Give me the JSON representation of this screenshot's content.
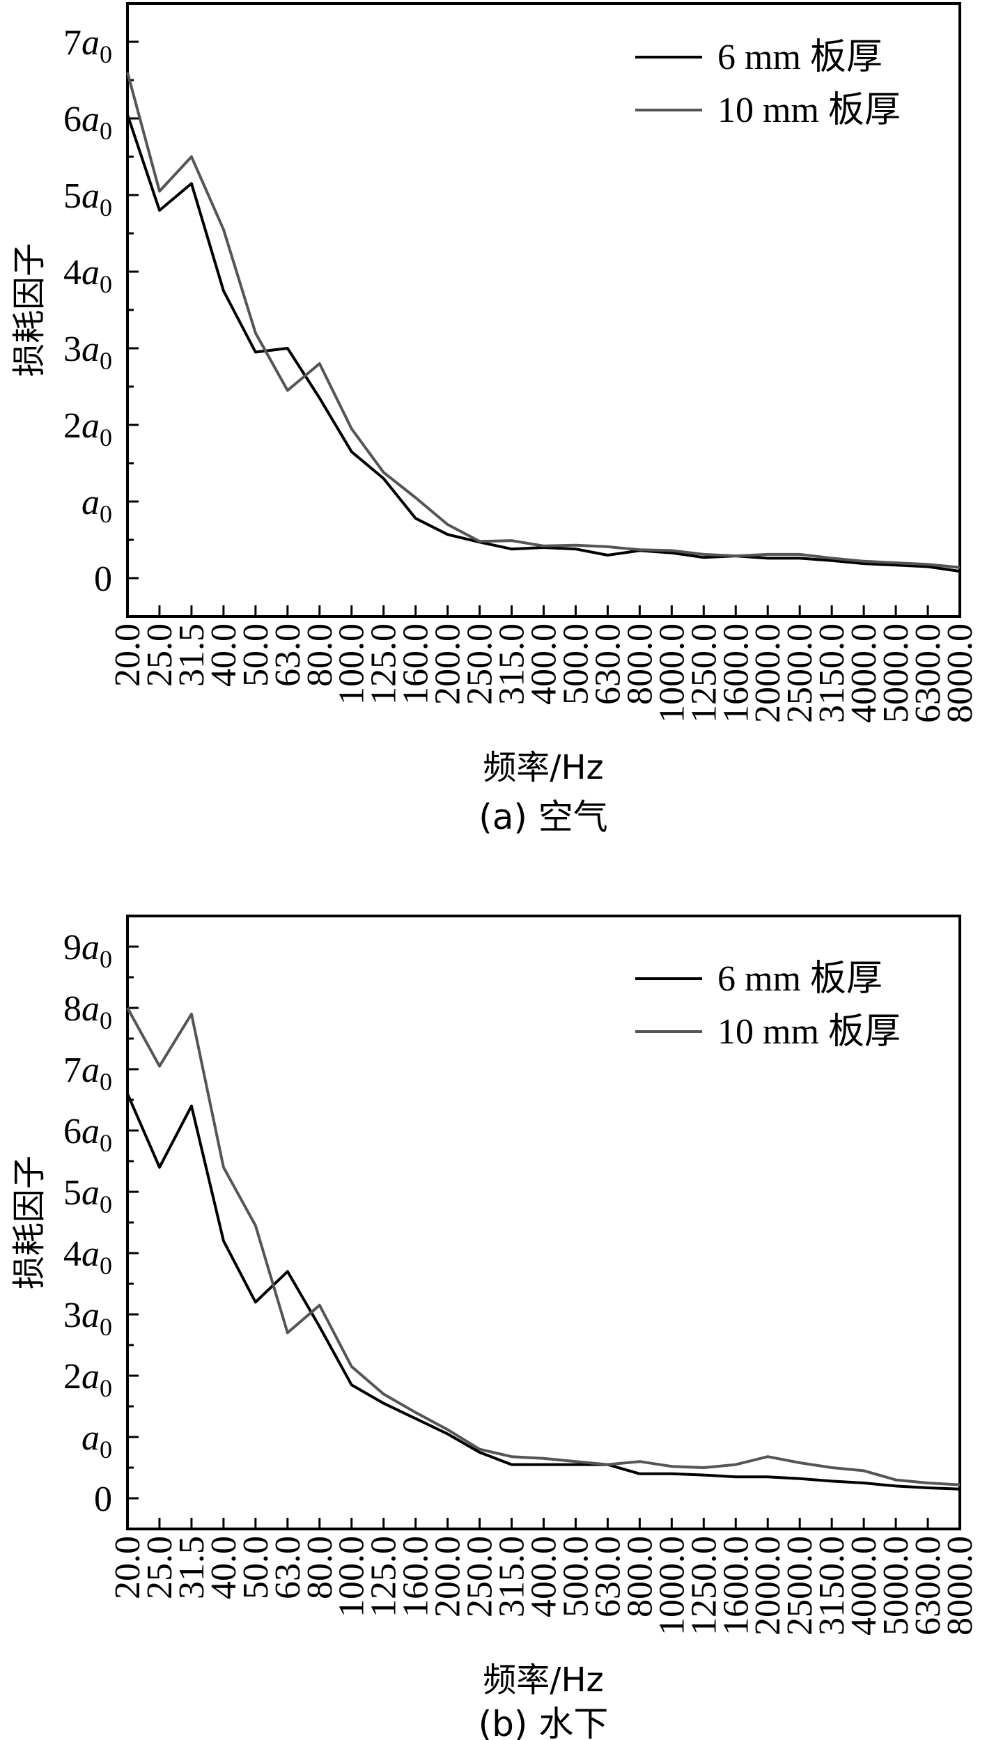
{
  "chart_data": [
    {
      "type": "line",
      "caption": "(a) 空气",
      "xlabel": "频率/Hz",
      "ylabel": "损耗因子",
      "categories": [
        "20.0",
        "25.0",
        "31.5",
        "40.0",
        "50.0",
        "63.0",
        "80.0",
        "100.0",
        "125.0",
        "160.0",
        "200.0",
        "250.0",
        "315.0",
        "400.0",
        "500.0",
        "630.0",
        "800.0",
        "1000.0",
        "1250.0",
        "1600.0",
        "2000.0",
        "2500.0",
        "3150.0",
        "4000.0",
        "5000.0",
        "6300.0",
        "8000.0"
      ],
      "ylim": [
        -0.5,
        7.5
      ],
      "yticks": [
        {
          "value": 0,
          "label": "0",
          "sub": ""
        },
        {
          "value": 1,
          "label": "a",
          "sub": "0"
        },
        {
          "value": 2,
          "label": "2a",
          "sub": "0"
        },
        {
          "value": 3,
          "label": "3a",
          "sub": "0"
        },
        {
          "value": 4,
          "label": "4a",
          "sub": "0"
        },
        {
          "value": 5,
          "label": "5a",
          "sub": "0"
        },
        {
          "value": 6,
          "label": "6a",
          "sub": "0"
        },
        {
          "value": 7,
          "label": "7a",
          "sub": "0"
        }
      ],
      "legend_position": "top-right",
      "series": [
        {
          "name": "6 mm 板厚",
          "color": "#000000",
          "values": [
            6.05,
            4.8,
            5.15,
            3.75,
            2.95,
            3.0,
            2.35,
            1.65,
            1.3,
            0.78,
            0.57,
            0.47,
            0.38,
            0.4,
            0.38,
            0.3,
            0.36,
            0.33,
            0.27,
            0.29,
            0.26,
            0.26,
            0.23,
            0.19,
            0.17,
            0.15,
            0.09
          ]
        },
        {
          "name": "10 mm 板厚",
          "color": "#555555",
          "values": [
            6.6,
            5.05,
            5.5,
            4.55,
            3.2,
            2.45,
            2.8,
            1.95,
            1.38,
            1.05,
            0.7,
            0.48,
            0.49,
            0.42,
            0.43,
            0.41,
            0.37,
            0.36,
            0.31,
            0.29,
            0.31,
            0.31,
            0.26,
            0.22,
            0.2,
            0.18,
            0.14
          ]
        }
      ]
    },
    {
      "type": "line",
      "caption": "(b) 水下",
      "xlabel": "频率/Hz",
      "ylabel": "损耗因子",
      "categories": [
        "20.0",
        "25.0",
        "31.5",
        "40.0",
        "50.0",
        "63.0",
        "80.0",
        "100.0",
        "125.0",
        "160.0",
        "200.0",
        "250.0",
        "315.0",
        "400.0",
        "500.0",
        "630.0",
        "800.0",
        "1000.0",
        "1250.0",
        "1600.0",
        "2000.0",
        "2500.0",
        "3150.0",
        "4000.0",
        "5000.0",
        "6300.0",
        "8000.0"
      ],
      "ylim": [
        -0.5,
        9.5
      ],
      "yticks": [
        {
          "value": 0,
          "label": "0",
          "sub": ""
        },
        {
          "value": 1,
          "label": "a",
          "sub": "0"
        },
        {
          "value": 2,
          "label": "2a",
          "sub": "0"
        },
        {
          "value": 3,
          "label": "3a",
          "sub": "0"
        },
        {
          "value": 4,
          "label": "4a",
          "sub": "0"
        },
        {
          "value": 5,
          "label": "5a",
          "sub": "0"
        },
        {
          "value": 6,
          "label": "6a",
          "sub": "0"
        },
        {
          "value": 7,
          "label": "7a",
          "sub": "0"
        },
        {
          "value": 8,
          "label": "8a",
          "sub": "0"
        },
        {
          "value": 9,
          "label": "9a",
          "sub": "0"
        }
      ],
      "legend_position": "top-right",
      "series": [
        {
          "name": "6 mm 板厚",
          "color": "#000000",
          "values": [
            6.6,
            5.4,
            6.4,
            4.2,
            3.2,
            3.7,
            2.8,
            1.85,
            1.55,
            1.3,
            1.05,
            0.75,
            0.55,
            0.55,
            0.55,
            0.55,
            0.4,
            0.4,
            0.38,
            0.35,
            0.35,
            0.32,
            0.28,
            0.25,
            0.2,
            0.17,
            0.15
          ]
        },
        {
          "name": "10 mm 板厚",
          "color": "#555555",
          "values": [
            8.0,
            7.05,
            7.9,
            5.4,
            4.45,
            2.7,
            3.15,
            2.15,
            1.7,
            1.4,
            1.12,
            0.8,
            0.68,
            0.65,
            0.6,
            0.55,
            0.6,
            0.52,
            0.5,
            0.55,
            0.68,
            0.58,
            0.5,
            0.45,
            0.3,
            0.25,
            0.22
          ]
        }
      ]
    }
  ]
}
